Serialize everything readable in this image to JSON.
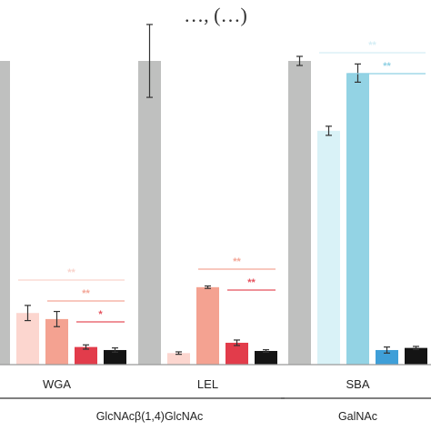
{
  "chart_data": {
    "type": "bar",
    "title": "…, (…)",
    "categories": [
      "WGA",
      "LEL",
      "SBA"
    ],
    "ylim": [
      0,
      100
    ],
    "grid": false,
    "series": [
      {
        "category": "WGA",
        "bars": [
          {
            "value": 100,
            "error": null,
            "color": "#bfc0bf"
          },
          {
            "value": 17,
            "error": 2.5,
            "color": "#fcd6cf"
          },
          {
            "value": 15,
            "error": 2.5,
            "color": "#f4a291"
          },
          {
            "value": 5.8,
            "error": 0.7,
            "color": "#e23c4b"
          },
          {
            "value": 4.8,
            "error": 0.7,
            "color": "#141414"
          }
        ],
        "significance": [
          {
            "label": "**",
            "from": 1,
            "to": 4,
            "color": "#f9d3cc"
          },
          {
            "label": "**",
            "from": 2,
            "to": 4,
            "color": "#f3a697"
          },
          {
            "label": "*",
            "from": 3,
            "to": 4,
            "color": "#e5505c"
          }
        ]
      },
      {
        "category": "LEL",
        "bars": [
          {
            "value": 100,
            "error": 12,
            "color": "#bfc0bf"
          },
          {
            "value": 3.8,
            "error": 0.4,
            "color": "#fcd6cf"
          },
          {
            "value": 25.5,
            "error": 0.4,
            "color": "#f4a291"
          },
          {
            "value": 7.2,
            "error": 0.9,
            "color": "#e23c4b"
          },
          {
            "value": 4.5,
            "error": 0.4,
            "color": "#141414"
          }
        ],
        "significance": [
          {
            "label": "**",
            "from": 2,
            "to": 4,
            "color": "#f3a697"
          },
          {
            "label": "**",
            "from": 3,
            "to": 4,
            "color": "#e5505c"
          }
        ]
      },
      {
        "category": "SBA",
        "bars": [
          {
            "value": 100,
            "error": 1.5,
            "color": "#bfc0bf"
          },
          {
            "value": 77,
            "error": 1.5,
            "color": "#d9f2f7"
          },
          {
            "value": 96,
            "error": 3,
            "color": "#93d3e4"
          },
          {
            "value": 4.8,
            "error": 1,
            "color": "#3f9fd8"
          },
          {
            "value": 5.5,
            "error": 0.5,
            "color": "#141414"
          }
        ],
        "significance": [
          {
            "label": "**",
            "from": 1,
            "to": 4,
            "color": "#d5eef5"
          },
          {
            "label": "**",
            "from": 2,
            "to": 4,
            "color": "#8fd0e3"
          }
        ]
      }
    ],
    "group_labels": [
      {
        "label": "GlcNAcβ(1,4)GlcNAc",
        "spans": [
          "WGA",
          "LEL"
        ]
      },
      {
        "label": "GalNAc",
        "spans": [
          "SBA"
        ]
      }
    ]
  }
}
